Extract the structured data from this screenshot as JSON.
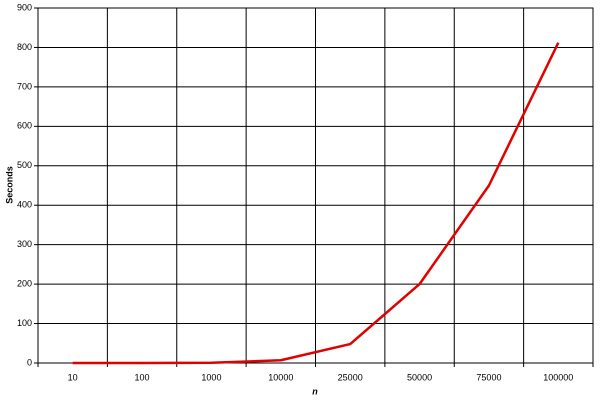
{
  "chart_data": {
    "type": "line",
    "x_label": "n",
    "y_label": "Seconds",
    "categories": [
      "10",
      "100",
      "1000",
      "10000",
      "25000",
      "50000",
      "75000",
      "100000"
    ],
    "series": [
      {
        "name": "Seconds",
        "color": "#e00000",
        "values": [
          0,
          0,
          0.5,
          7,
          48,
          200,
          450,
          812
        ]
      }
    ],
    "ylim": [
      0,
      900
    ],
    "yticks": [
      0,
      100,
      200,
      300,
      400,
      500,
      600,
      700,
      800,
      900
    ],
    "grid": true
  }
}
